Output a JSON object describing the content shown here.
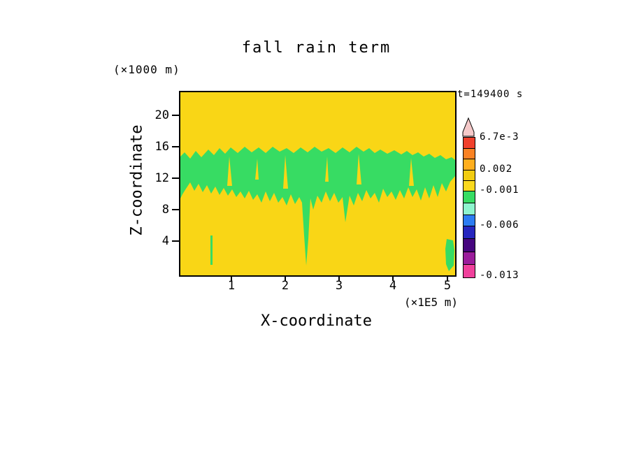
{
  "title": "fall rain term",
  "time_label": "t=149400 s",
  "axes": {
    "x_label": "X-coordinate",
    "y_label": "Z-coordinate",
    "x_unit": "(×1E5 m)",
    "y_unit": "(×1000 m)",
    "x_ticks": [
      "1",
      "2",
      "3",
      "4",
      "5"
    ],
    "y_ticks": [
      "20",
      "16",
      "12",
      "8",
      "4"
    ]
  },
  "colors": {
    "field_yellow": "#F9D616",
    "band_green": "#37DC63",
    "frame_black": "#000000"
  },
  "colorbar": {
    "tip_color": "#F5C9C9",
    "labels": [
      "6.7e-3",
      "0.002",
      "-0.001",
      "-0.006",
      "-0.013"
    ],
    "segments": [
      {
        "color": "#F0402C",
        "h": 15
      },
      {
        "color": "#FA8223",
        "h": 15
      },
      {
        "color": "#FFAE1E",
        "h": 16
      },
      {
        "color": "#F2CC10",
        "h": 15
      },
      {
        "color": "#FBD91E",
        "h": 15
      },
      {
        "color": "#37DC63",
        "h": 17
      },
      {
        "color": "#8EF5CE",
        "h": 17
      },
      {
        "color": "#2C7CF2",
        "h": 16
      },
      {
        "color": "#2626BE",
        "h": 18
      },
      {
        "color": "#46067E",
        "h": 19
      },
      {
        "color": "#9B1D9B",
        "h": 18
      },
      {
        "color": "#F0419C",
        "h": 19
      }
    ]
  },
  "chart_data": {
    "type": "heatmap",
    "title": "fall rain term",
    "annotation": "t=149400 s",
    "xlabel": "X-coordinate",
    "ylabel": "Z-coordinate",
    "x_unit": "×1E5 m",
    "y_unit": "×1000 m",
    "xlim": [
      0,
      5.1
    ],
    "ylim": [
      0,
      22.5
    ],
    "x_ticks": [
      1,
      2,
      3,
      4,
      5
    ],
    "y_ticks": [
      4,
      8,
      12,
      16,
      20
    ],
    "grid": false,
    "legend_position": "right-colorbar",
    "colorbar_levels": [
      "6.7e-3",
      "0.002",
      "-0.001",
      "-0.006",
      "-0.013"
    ],
    "field_summary": {
      "background_bin": "yellow, values between -0.001 and 0.002",
      "green_band_bin": "green, values just below -0.001",
      "green_band_extent": {
        "x_range_1E5m": [
          0,
          5.05
        ],
        "z_range_1000m": [
          9.5,
          15.8
        ]
      },
      "notable_features": [
        "irregular green band across full width between z≈9.5 and z≈15.8 (×1000 m)",
        "deep narrow green streak near x≈2.35 (×1E5 m) descending to z≈0.5",
        "short green streak down to z≈7 near x≈3.0",
        "thin isolated vertical green streak near x≈0.55, z≈1.5–5",
        "small green blob at bottom-right corner near x≈5.0, z≈0.5–4.5"
      ]
    },
    "shapes": {
      "green_paths": [
        "M0,92 L6,86 L14,95 L22,84 L30,93 L40,82 L48,90 L56,80 L64,88 L72,79 L82,87 L92,78 L102,86 L112,79 L122,87 L132,78 L142,85 L152,80 L162,87 L172,79 L182,86 L192,78 L202,85 L212,80 L222,87 L232,79 L242,86 L252,78 L262,85 L270,80 L278,87 L286,82 L296,88 L306,83 L316,89 L324,84 L332,90 L340,86 L348,92 L356,88 L364,94 L372,90 L380,96 L388,93 L393,97 L393,120 L386,128 L380,142 L374,130 L368,150 L362,133 L356,152 L350,136 L344,155 L338,139 L332,150 L326,136 L320,152 L314,140 L308,154 L302,142 L296,150 L290,138 L284,158 L278,144 L272,152 L266,140 L260,156 L254,144 L248,162 L242,148 L236,186 L232,150 L226,158 L220,144 L214,156 L208,142 L202,158 L196,148 L190,168 L186,152 L183,210 L180,248 L177,205 L174,158 L170,150 L164,160 L158,146 L152,162 L146,150 L140,158 L134,144 L128,156 L122,142 L116,158 L110,146 L104,154 L98,141 L92,152 L86,142 L80,150 L74,139 L68,148 L62,137 L56,147 L50,135 L44,145 L38,133 L32,143 L26,131 L20,141 L14,129 L8,138 L3,146 L0,152 Z",
        "M43,205 L46,205 L46,247 L43,247 Z",
        "M381,210 L390,212 L392,226 L391,248 L384,256 L380,246 L379,224 Z"
      ],
      "yellow_streaks": [
        "M70,92 L74,134 L67,134 Z",
        "M110,95 L112,125 L107,125 Z",
        "M150,90 L154,138 L147,138 Z",
        "M210,92 L212,128 L207,128 Z",
        "M255,88 L259,132 L252,132 Z",
        "M330,94 L334,134 L327,134 Z"
      ]
    }
  }
}
